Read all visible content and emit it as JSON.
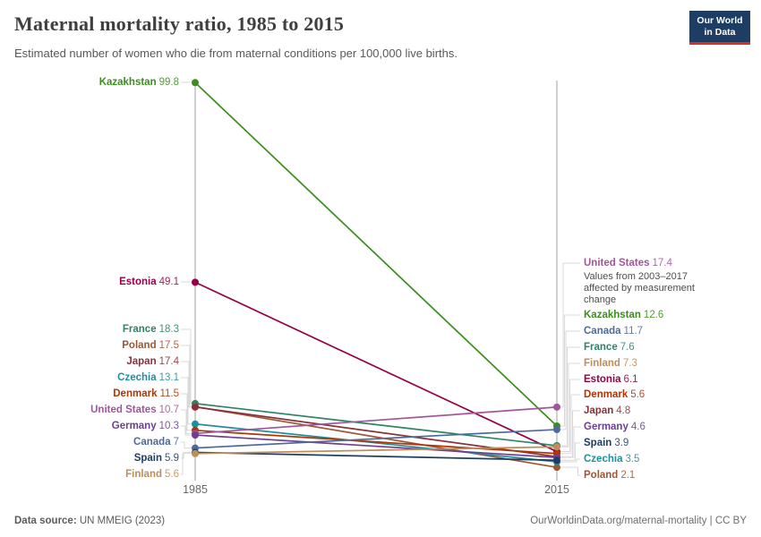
{
  "header": {
    "title": "Maternal mortality ratio, 1985 to 2015",
    "subtitle": "Estimated number of women who die from maternal conditions per 100,000 live births.",
    "logo": {
      "line1": "Our World",
      "line2": "in Data"
    }
  },
  "chart_data": {
    "type": "line",
    "variant": "slope",
    "x": [
      1985,
      2015
    ],
    "x_labels": [
      "1985",
      "2015"
    ],
    "ylim": [
      0,
      100
    ],
    "grid": false,
    "series": [
      {
        "name": "Kazakhstan",
        "values": [
          99.8,
          12.6
        ],
        "color": "#3B8E1D"
      },
      {
        "name": "Estonia",
        "values": [
          49.1,
          6.1
        ],
        "color": "#970046"
      },
      {
        "name": "France",
        "values": [
          18.3,
          7.6
        ],
        "color": "#2C8465"
      },
      {
        "name": "Poland",
        "values": [
          17.5,
          2.1
        ],
        "color": "#9D5733"
      },
      {
        "name": "Japan",
        "values": [
          17.4,
          4.8
        ],
        "color": "#883039"
      },
      {
        "name": "Czechia",
        "values": [
          13.1,
          3.5
        ],
        "color": "#1F8F9C"
      },
      {
        "name": "Denmark",
        "values": [
          11.5,
          5.6
        ],
        "color": "#B13507"
      },
      {
        "name": "United States",
        "values": [
          10.7,
          17.4
        ],
        "color": "#A2559C",
        "has_note": true
      },
      {
        "name": "Germany",
        "values": [
          10.3,
          4.6
        ],
        "color": "#6D3E91"
      },
      {
        "name": "Canada",
        "values": [
          7,
          11.7
        ],
        "color": "#4C6A9C"
      },
      {
        "name": "Spain",
        "values": [
          5.9,
          3.9
        ],
        "color": "#1D3D63",
        "bold": true
      },
      {
        "name": "Finland",
        "values": [
          5.6,
          7.3
        ],
        "color": "#BC8E5A"
      }
    ],
    "note": "Values from 2003–2017 affected by measurement change"
  },
  "footer": {
    "source_label": "Data source:",
    "source_value": " UN MMEIG (2023)",
    "credit": "OurWorldinData.org/maternal-mortality | CC BY"
  }
}
